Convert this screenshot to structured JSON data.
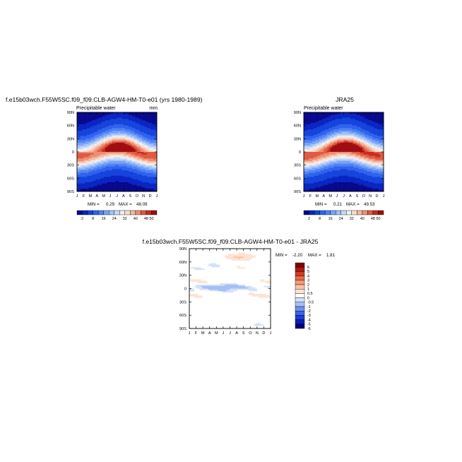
{
  "chart_data": [
    {
      "type": "heatmap",
      "title": "f.e15b03wch.F55W5SC.f09_f09.CLB-AGW4-HM-T0-e01 (yrs 1980-1989)",
      "subtitle": "Precipitable water",
      "units": "mm",
      "x_ticks": [
        "J",
        "F",
        "M",
        "A",
        "M",
        "J",
        "J",
        "A",
        "S",
        "O",
        "N",
        "D",
        "J"
      ],
      "y_ticks": [
        "90N",
        "60N",
        "30N",
        "0",
        "30S",
        "60S",
        "90S"
      ],
      "stats": {
        "min_label": "MIN =",
        "min": "0.29",
        "max_label": "MAX =",
        "max": "48.09"
      },
      "colorbar_ticks": [
        "2",
        "8",
        "16",
        "24",
        "32",
        "40",
        "48",
        "50"
      ],
      "levels": [
        2,
        4,
        8,
        12,
        16,
        20,
        24,
        28,
        32,
        36,
        40,
        44,
        48,
        50
      ],
      "field": {
        "description_free": true,
        "equator_peak": 46,
        "seasonal_shift_deg": 9,
        "pole_value_north": 3,
        "pole_value_south": 1
      }
    },
    {
      "type": "heatmap",
      "title": "JRA25",
      "subtitle": "Precipitable water",
      "x_ticks": [
        "J",
        "F",
        "M",
        "A",
        "M",
        "J",
        "J",
        "A",
        "S",
        "O",
        "N",
        "D",
        "J"
      ],
      "y_ticks": [
        "90N",
        "60N",
        "30N",
        "0",
        "30S",
        "60S",
        "90S"
      ],
      "stats": {
        "min_label": "MIN =",
        "min": "0.21",
        "max_label": "MAX =",
        "max": "49.53"
      },
      "colorbar_ticks": [
        "2",
        "8",
        "16",
        "24",
        "32",
        "40",
        "48",
        "50"
      ],
      "levels": [
        2,
        4,
        8,
        12,
        16,
        20,
        24,
        28,
        32,
        36,
        40,
        44,
        48,
        50
      ],
      "field": {
        "equator_peak": 47,
        "seasonal_shift_deg": 9,
        "pole_value_north": 3,
        "pole_value_south": 1
      }
    },
    {
      "type": "heatmap",
      "title": "f.e15b03wch.F55W5SC.f09_f09.CLB-AGW4-HM-T0-e01 - JRA25",
      "x_ticks": [
        "J",
        "F",
        "M",
        "A",
        "M",
        "J",
        "J",
        "A",
        "S",
        "O",
        "N",
        "D",
        "J"
      ],
      "y_ticks": [
        "90N",
        "60N",
        "30N",
        "0",
        "30S",
        "60S",
        "90S"
      ],
      "stats": {
        "min_label": "MIN =",
        "min": "-2.20",
        "max_label": "MAX =",
        "max": "1.81"
      },
      "colorbar_ticks": [
        "6",
        "5",
        "4",
        "3",
        "2",
        "1",
        "0.5",
        "0",
        "-0.5",
        "-1",
        "-2",
        "-3",
        "-4",
        "-5",
        "-6"
      ],
      "levels": [
        -6,
        -5,
        -4,
        -3,
        -2,
        -1,
        -0.5,
        0,
        0.5,
        1,
        2,
        3,
        4,
        5,
        6
      ]
    }
  ],
  "colors": {
    "abs_scale": [
      "#08088c",
      "#0a25c2",
      "#1444dc",
      "#2e63ee",
      "#4f82f4",
      "#76a2f7",
      "#a1c1f8",
      "#cad9f3",
      "#eef0f6",
      "#f8dccd",
      "#f4b8a0",
      "#ee8d70",
      "#e15a42",
      "#c82a20",
      "#9e0d10"
    ],
    "diff_scale": [
      "#00007f",
      "#0a1fb0",
      "#1a3fd6",
      "#3a64ea",
      "#6e90f0",
      "#a5bff5",
      "#d3e1fa",
      "#ffffff",
      "#fde3d3",
      "#f9c3a6",
      "#f19a78",
      "#e66a4a",
      "#d23c25",
      "#ad1a10",
      "#800000"
    ]
  }
}
